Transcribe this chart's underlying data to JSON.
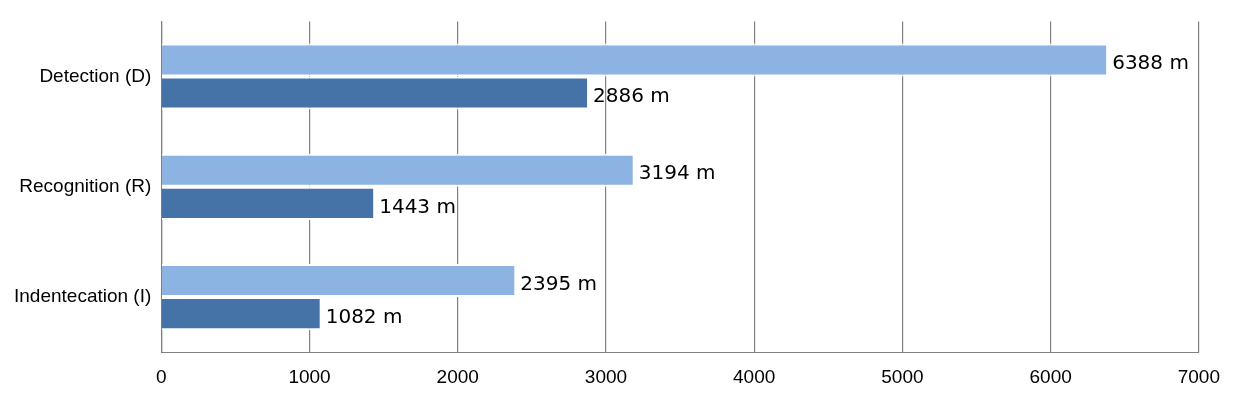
{
  "chart_data": {
    "type": "bar",
    "orientation": "horizontal",
    "categories": [
      "Detection (D)",
      "Recognition (R)",
      "Indentecation (I)"
    ],
    "series": [
      {
        "color": "#8db3e2",
        "values": [
          6388,
          3194,
          2395
        ],
        "value_labels": [
          "6388 m",
          "3194 m",
          "2395 m"
        ]
      },
      {
        "color": "#4572a7",
        "values": [
          2886,
          1443,
          1082
        ],
        "value_labels": [
          "2886 m",
          "1443 m",
          "1082 m"
        ]
      }
    ],
    "xlim": [
      0,
      7000
    ],
    "xticks": [
      0,
      1000,
      2000,
      3000,
      4000,
      5000,
      6000,
      7000
    ],
    "grid": "x",
    "legend": false
  }
}
